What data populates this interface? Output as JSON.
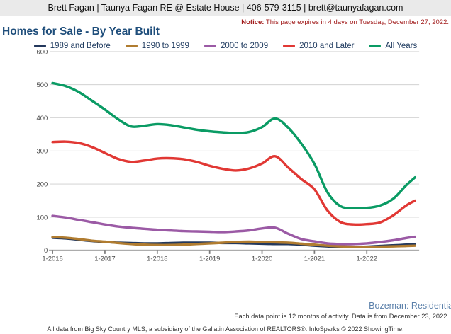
{
  "header": {
    "title": "Brett Fagan | Taunya Fagan RE @ Estate House | 406-579-3115 | brett@taunyafagan.com"
  },
  "notice": {
    "label": "Notice:",
    "text": " This page expires in 4 days on Tuesday, December 27, 2022."
  },
  "page_title": "Homes for Sale - By Year Built",
  "footer": {
    "market": "Bozeman: Residentia",
    "caption": "Each data point is 12 months of activity. Data is from December 23, 2022.",
    "attribution": "All data from Big Sky Country MLS, a subsidiary of the Gallatin Association of REALTORS®. InfoSparks © 2022 ShowingTime."
  },
  "style": {
    "header_bg": "#eaeaea",
    "title_color": "#1f4e7b",
    "notice_color": "#a11a1a",
    "market_color": "#5b80aa",
    "grid_color": "#cccccc",
    "axis_color": "#7a7a7a",
    "tick_text_color": "#474747"
  },
  "chart_data": {
    "type": "line",
    "title": "Homes for Sale - By Year Built",
    "xlabel": "",
    "ylabel": "",
    "ylim": [
      0,
      600
    ],
    "y_ticks": [
      0,
      100,
      200,
      300,
      400,
      500,
      600
    ],
    "grid": true,
    "legend_position": "top",
    "x_note": "x values are fractional years; each data point is 12 months of activity",
    "x": [
      2016.0,
      2016.25,
      2016.5,
      2016.75,
      2017.0,
      2017.25,
      2017.5,
      2017.75,
      2018.0,
      2018.25,
      2018.5,
      2018.75,
      2019.0,
      2019.25,
      2019.5,
      2019.75,
      2020.0,
      2020.25,
      2020.5,
      2020.75,
      2021.0,
      2021.25,
      2021.5,
      2021.75,
      2022.0,
      2022.25,
      2022.5,
      2022.75,
      2022.92
    ],
    "x_tick_positions": [
      2016,
      2017,
      2018,
      2019,
      2020,
      2021,
      2022
    ],
    "x_tick_labels": [
      "1-2016",
      "1-2017",
      "1-2018",
      "1-2019",
      "1-2020",
      "1-2021",
      "1-2022"
    ],
    "series": [
      {
        "name": "1989 and Before",
        "color": "#23385c",
        "values": [
          38,
          36,
          32,
          28,
          25,
          23,
          22,
          21,
          21,
          22,
          23,
          23,
          23,
          22,
          22,
          21,
          20,
          19,
          19,
          17,
          14,
          12,
          10,
          10,
          11,
          13,
          15,
          17,
          18
        ]
      },
      {
        "name": "1990 to 1999",
        "color": "#b07c30",
        "values": [
          40,
          38,
          34,
          29,
          26,
          22,
          19,
          17,
          16,
          16,
          17,
          19,
          21,
          23,
          25,
          26,
          25,
          24,
          23,
          20,
          17,
          14,
          12,
          11,
          10,
          11,
          12,
          13,
          14
        ]
      },
      {
        "name": "2000 to 2009",
        "color": "#9b5aa5",
        "values": [
          104,
          99,
          92,
          85,
          78,
          72,
          68,
          65,
          62,
          60,
          58,
          57,
          56,
          55,
          57,
          60,
          66,
          68,
          50,
          34,
          27,
          21,
          19,
          19,
          21,
          25,
          30,
          37,
          41
        ]
      },
      {
        "name": "2010 and Later",
        "color": "#e13834",
        "values": [
          327,
          328,
          324,
          312,
          294,
          276,
          267,
          271,
          277,
          278,
          275,
          267,
          255,
          246,
          241,
          247,
          262,
          284,
          250,
          215,
          184,
          120,
          85,
          78,
          79,
          84,
          105,
          135,
          150
        ]
      },
      {
        "name": "All Years",
        "color": "#0a9b64",
        "values": [
          505,
          496,
          478,
          452,
          425,
          396,
          374,
          376,
          381,
          378,
          371,
          364,
          359,
          356,
          354,
          357,
          372,
          398,
          370,
          322,
          261,
          175,
          133,
          128,
          128,
          135,
          155,
          196,
          220
        ]
      }
    ]
  }
}
